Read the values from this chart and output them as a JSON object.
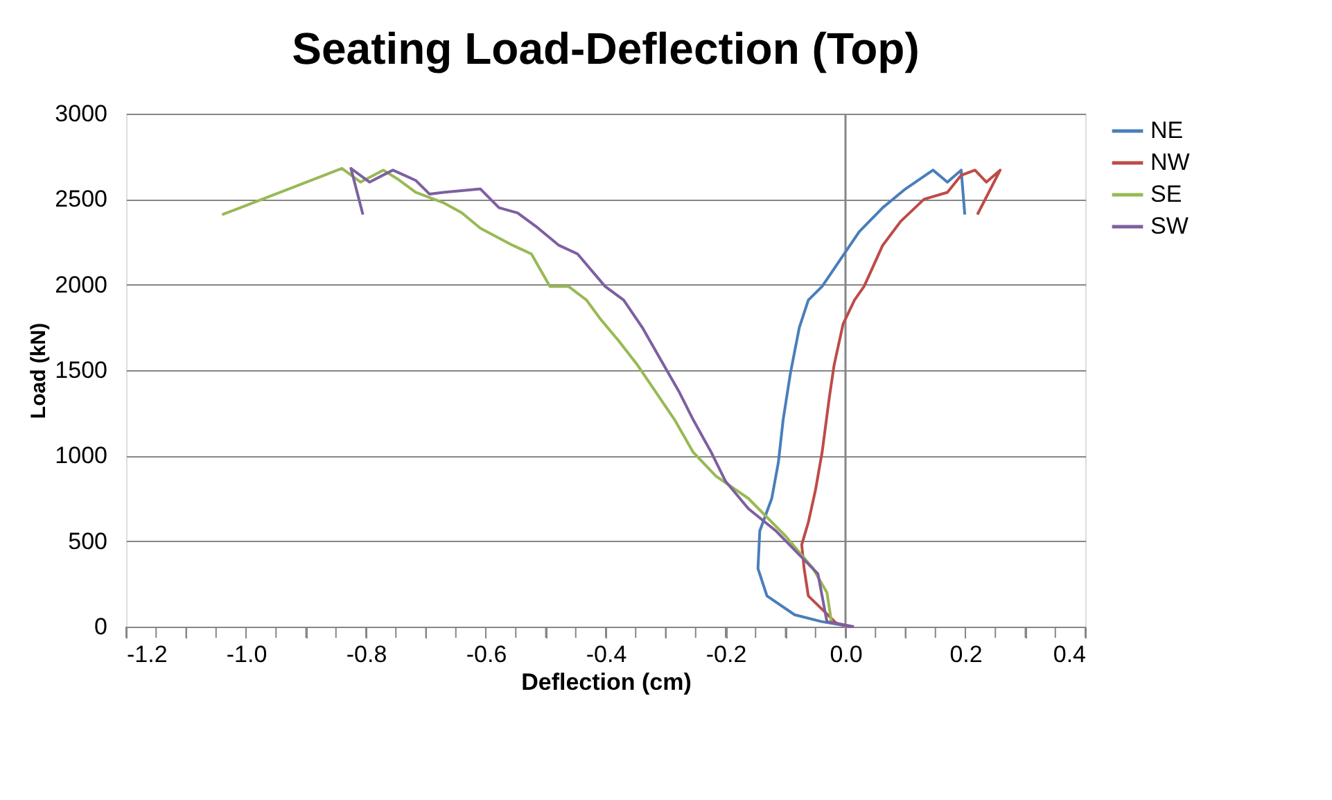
{
  "chart_data": {
    "type": "line",
    "title": "Seating Load-Deflection (Top)",
    "xlabel": "Deflection (cm)",
    "ylabel": "Load (kN)",
    "xlim": [
      -1.2,
      0.4
    ],
    "ylim": [
      0,
      3000
    ],
    "xticks": [
      {
        "value": -1.2,
        "label": "-1.2"
      },
      {
        "value": -1.15,
        "label": null
      },
      {
        "value": -1.1,
        "label": null
      },
      {
        "value": -1.05,
        "label": null
      },
      {
        "value": -1.0,
        "label": "-1.0"
      },
      {
        "value": -0.95,
        "label": null
      },
      {
        "value": -0.9,
        "label": null
      },
      {
        "value": -0.85,
        "label": null
      },
      {
        "value": -0.8,
        "label": "-0.8"
      },
      {
        "value": -0.75,
        "label": null
      },
      {
        "value": -0.7,
        "label": null
      },
      {
        "value": -0.65,
        "label": null
      },
      {
        "value": -0.6,
        "label": "-0.6"
      },
      {
        "value": -0.55,
        "label": null
      },
      {
        "value": -0.5,
        "label": null
      },
      {
        "value": -0.45,
        "label": null
      },
      {
        "value": -0.4,
        "label": "-0.4"
      },
      {
        "value": -0.35,
        "label": null
      },
      {
        "value": -0.3,
        "label": null
      },
      {
        "value": -0.25,
        "label": null
      },
      {
        "value": -0.2,
        "label": "-0.2"
      },
      {
        "value": -0.15,
        "label": null
      },
      {
        "value": -0.1,
        "label": null
      },
      {
        "value": -0.05,
        "label": null
      },
      {
        "value": 0,
        "label": "0.0"
      },
      {
        "value": 0.05,
        "label": null
      },
      {
        "value": 0.1,
        "label": null
      },
      {
        "value": 0.15,
        "label": null
      },
      {
        "value": 0.2,
        "label": "0.2"
      },
      {
        "value": 0.25,
        "label": null
      },
      {
        "value": 0.3,
        "label": null
      },
      {
        "value": 0.35,
        "label": null
      },
      {
        "value": 0.4,
        "label": "0.4"
      }
    ],
    "yticks": [
      0,
      500,
      1000,
      1500,
      2000,
      2500,
      3000
    ],
    "grid": "y",
    "legend": "right",
    "marker": "none",
    "line_style": "solid",
    "ref_lines": [
      {
        "axis": "x",
        "value": 0,
        "color": "#868686"
      }
    ],
    "series": [
      {
        "name": "NE",
        "color": "#4a7ebb",
        "x": [
          0.01,
          -0.04,
          -0.085,
          -0.131,
          -0.146,
          -0.143,
          -0.123,
          -0.112,
          -0.104,
          -0.092,
          -0.077,
          -0.062,
          -0.039,
          -0.008,
          0.023,
          0.062,
          0.1,
          0.146,
          0.17,
          0.193,
          0.199
        ],
        "values": [
          0,
          30,
          70,
          180,
          340,
          560,
          750,
          960,
          1210,
          1480,
          1750,
          1910,
          1990,
          2150,
          2310,
          2450,
          2560,
          2670,
          2600,
          2670,
          2410
        ]
      },
      {
        "name": "NW",
        "color": "#be4b48",
        "x": [
          0.008,
          -0.015,
          -0.062,
          -0.069,
          -0.073,
          -0.062,
          -0.05,
          -0.039,
          -0.027,
          -0.019,
          -0.004,
          0.015,
          0.031,
          0.062,
          0.092,
          0.131,
          0.17,
          0.193,
          0.216,
          0.235,
          0.258,
          0.22
        ],
        "values": [
          0,
          20,
          180,
          340,
          480,
          610,
          800,
          1020,
          1340,
          1530,
          1770,
          1910,
          1990,
          2230,
          2370,
          2500,
          2540,
          2640,
          2670,
          2600,
          2670,
          2410
        ]
      },
      {
        "name": "SE",
        "color": "#98b954",
        "x": [
          -0.023,
          -0.031,
          -0.054,
          -0.1,
          -0.162,
          -0.216,
          -0.254,
          -0.285,
          -0.316,
          -0.347,
          -0.378,
          -0.409,
          -0.432,
          -0.462,
          -0.493,
          -0.524,
          -0.555,
          -0.609,
          -0.64,
          -0.671,
          -0.717,
          -0.748,
          -0.771,
          -0.809,
          -0.84,
          -1.017,
          -1.04
        ],
        "values": [
          20,
          200,
          340,
          530,
          750,
          880,
          1020,
          1210,
          1370,
          1530,
          1670,
          1800,
          1910,
          1990,
          1990,
          2180,
          2230,
          2330,
          2420,
          2480,
          2540,
          2620,
          2670,
          2600,
          2680,
          2440,
          2410
        ]
      },
      {
        "name": "SW",
        "color": "#7d60a0",
        "x": [
          0.014,
          -0.031,
          -0.046,
          -0.077,
          -0.116,
          -0.162,
          -0.2,
          -0.224,
          -0.254,
          -0.277,
          -0.308,
          -0.339,
          -0.37,
          -0.401,
          -0.447,
          -0.478,
          -0.516,
          -0.547,
          -0.578,
          -0.609,
          -0.671,
          -0.694,
          -0.717,
          -0.755,
          -0.794,
          -0.825,
          -0.805
        ],
        "values": [
          0,
          30,
          310,
          420,
          560,
          690,
          850,
          1020,
          1210,
          1370,
          1560,
          1750,
          1910,
          1990,
          2180,
          2230,
          2340,
          2420,
          2450,
          2560,
          2540,
          2530,
          2610,
          2670,
          2600,
          2680,
          2410
        ]
      }
    ]
  }
}
